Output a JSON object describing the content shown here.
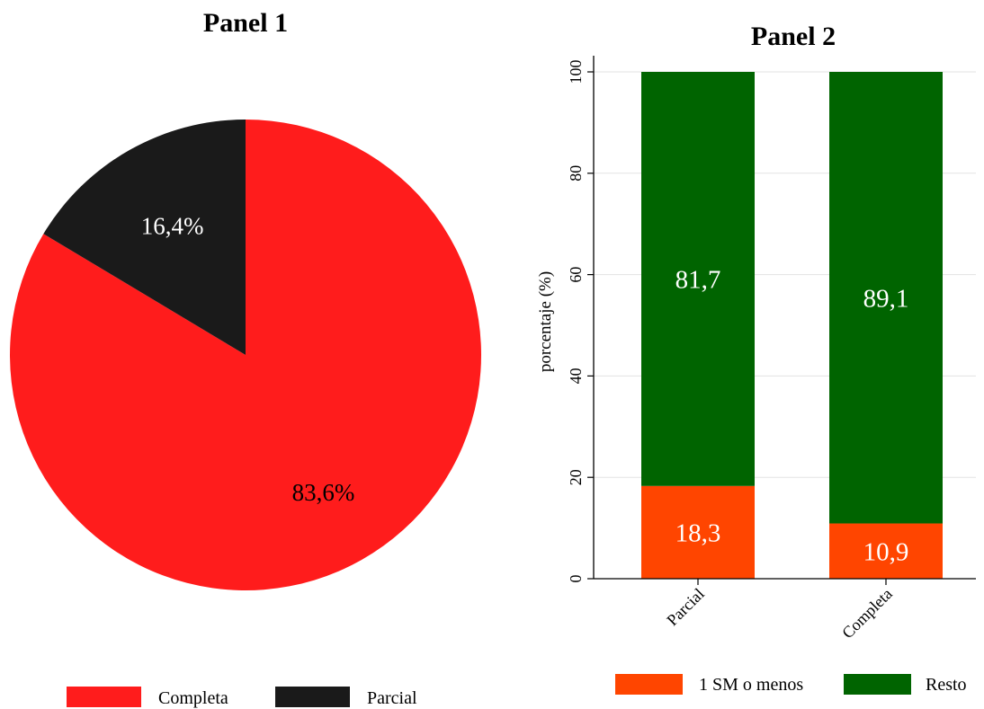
{
  "chart_data": [
    {
      "type": "pie",
      "title": "Panel 1",
      "slices": [
        {
          "label": "Completa",
          "value": 83.6,
          "display": "83,6%",
          "color": "#ff1c1c"
        },
        {
          "label": "Parcial",
          "value": 16.4,
          "display": "16,4%",
          "color": "#1a1a1a"
        }
      ],
      "legend": {
        "position": "bottom",
        "entries": [
          "Completa",
          "Parcial"
        ]
      }
    },
    {
      "type": "bar",
      "stacked": true,
      "title": "Panel 2",
      "categories": [
        "Parcial",
        "Completa"
      ],
      "series": [
        {
          "name": "1 SM o menos",
          "values": [
            18.3,
            10.9
          ],
          "labels": [
            "18,3",
            "10,9"
          ],
          "color": "#ff4500"
        },
        {
          "name": "Resto",
          "values": [
            81.7,
            89.1
          ],
          "labels": [
            "81,7",
            "89,1"
          ],
          "color": "#006400"
        }
      ],
      "ylabel": "porcentaje (%)",
      "xlabel": "",
      "ylim": [
        0,
        100
      ],
      "yticks": [
        0,
        20,
        40,
        60,
        80,
        100
      ],
      "grid": true,
      "legend": {
        "position": "bottom",
        "entries": [
          "1 SM o menos",
          "Resto"
        ]
      }
    }
  ]
}
